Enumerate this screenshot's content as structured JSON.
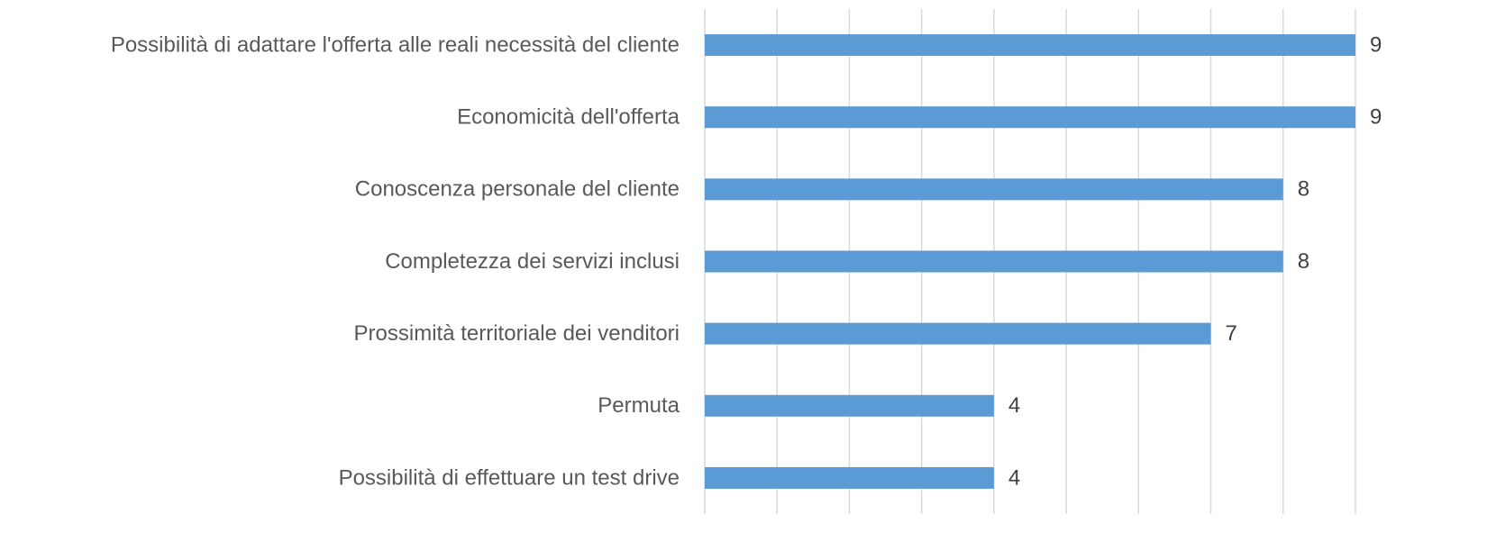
{
  "chart_data": {
    "type": "barh",
    "categories": [
      "Possibilità di adattare l'offerta alle reali necessità del cliente",
      "Economicità dell'offerta",
      "Conoscenza personale del cliente",
      "Completezza dei servizi inclusi",
      "Prossimità territoriale dei venditori",
      "Permuta",
      "Possibilità di effettuare un test drive"
    ],
    "values": [
      9,
      9,
      8,
      8,
      7,
      4,
      4
    ],
    "color": "#5b9bd5",
    "xlim": [
      0,
      9
    ],
    "xticks": [
      0,
      1,
      2,
      3,
      4,
      5,
      6,
      7,
      8,
      9
    ],
    "grid": true,
    "tick_labels": false,
    "data_labels": true
  }
}
